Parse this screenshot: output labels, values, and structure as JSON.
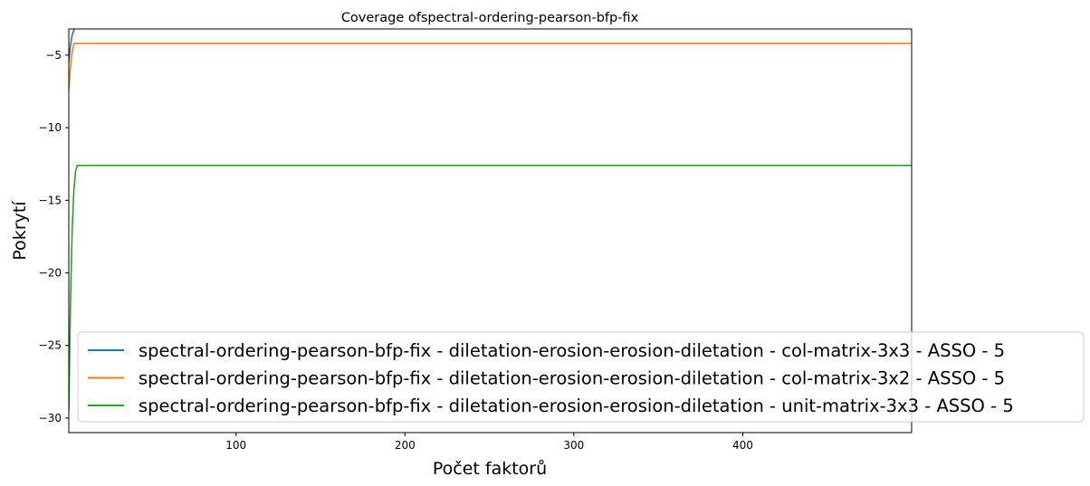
{
  "chart_data": {
    "type": "line",
    "title": "Coverage ofspectral-ordering-pearson-bfp-fix",
    "xlabel": "Počet faktorů",
    "ylabel": "Pokrytí",
    "xlim": [
      1,
      500
    ],
    "ylim": [
      -31,
      -3.2
    ],
    "xticks": [
      100,
      200,
      300,
      400
    ],
    "yticks": [
      -5,
      -10,
      -15,
      -20,
      -25,
      -30
    ],
    "xtick_labels": [
      "100",
      "200",
      "300",
      "400"
    ],
    "ytick_labels": [
      "−5",
      "−10",
      "−15",
      "−20",
      "−25",
      "−30"
    ],
    "grid": false,
    "legend_position": "lower right",
    "series": [
      {
        "name": "spectral-ordering-pearson-bfp-fix - diletation-erosion-erosion-diletation - col-matrix-3x3 - ASSO - 5",
        "color": "#1f77b4",
        "x": [
          1,
          2,
          3,
          4,
          5
        ],
        "y": [
          -5.5,
          -4.3,
          -3.6,
          -3.3,
          -3.0
        ]
      },
      {
        "name": "spectral-ordering-pearson-bfp-fix - diletation-erosion-erosion-diletation - col-matrix-3x2 - ASSO - 5",
        "color": "#ff7f0e",
        "x": [
          1,
          2,
          3,
          4,
          500
        ],
        "y": [
          -7.4,
          -5.8,
          -4.8,
          -4.2,
          -4.2
        ]
      },
      {
        "name": "spectral-ordering-pearson-bfp-fix - diletation-erosion-erosion-diletation - unit-matrix-3x3 - ASSO - 5",
        "color": "#2ca02c",
        "x": [
          1,
          2,
          3,
          4,
          5,
          6,
          500
        ],
        "y": [
          -29.5,
          -22.0,
          -17.0,
          -14.3,
          -13.0,
          -12.6,
          -12.6
        ]
      }
    ]
  }
}
